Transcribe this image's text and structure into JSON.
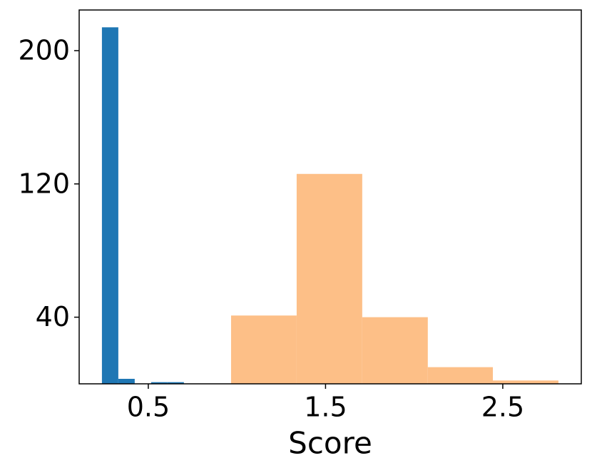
{
  "chart_data": {
    "type": "histogram",
    "xlabel": "Score",
    "series": [
      {
        "color": "#1f77b4",
        "bins": [
          0.2384,
          0.3309,
          0.4234,
          0.5159,
          0.6084,
          0.7009,
          0.7934,
          0.8859,
          0.9784,
          1.0709,
          1.1634
        ],
        "values": [
          214,
          3,
          0,
          1,
          1,
          0,
          0,
          0,
          0,
          0
        ]
      },
      {
        "color": "#fdbf87",
        "bins": [
          0.967,
          1.337,
          1.707,
          2.077,
          2.444,
          2.814
        ],
        "values": [
          41,
          126,
          40,
          10,
          2
        ]
      }
    ],
    "xlim": [
      0.11,
      2.943
    ],
    "ylim": [
      0,
      224.4
    ],
    "xticks": [
      0.5,
      1.5,
      2.5
    ],
    "yticks": [
      40,
      120,
      200
    ]
  }
}
